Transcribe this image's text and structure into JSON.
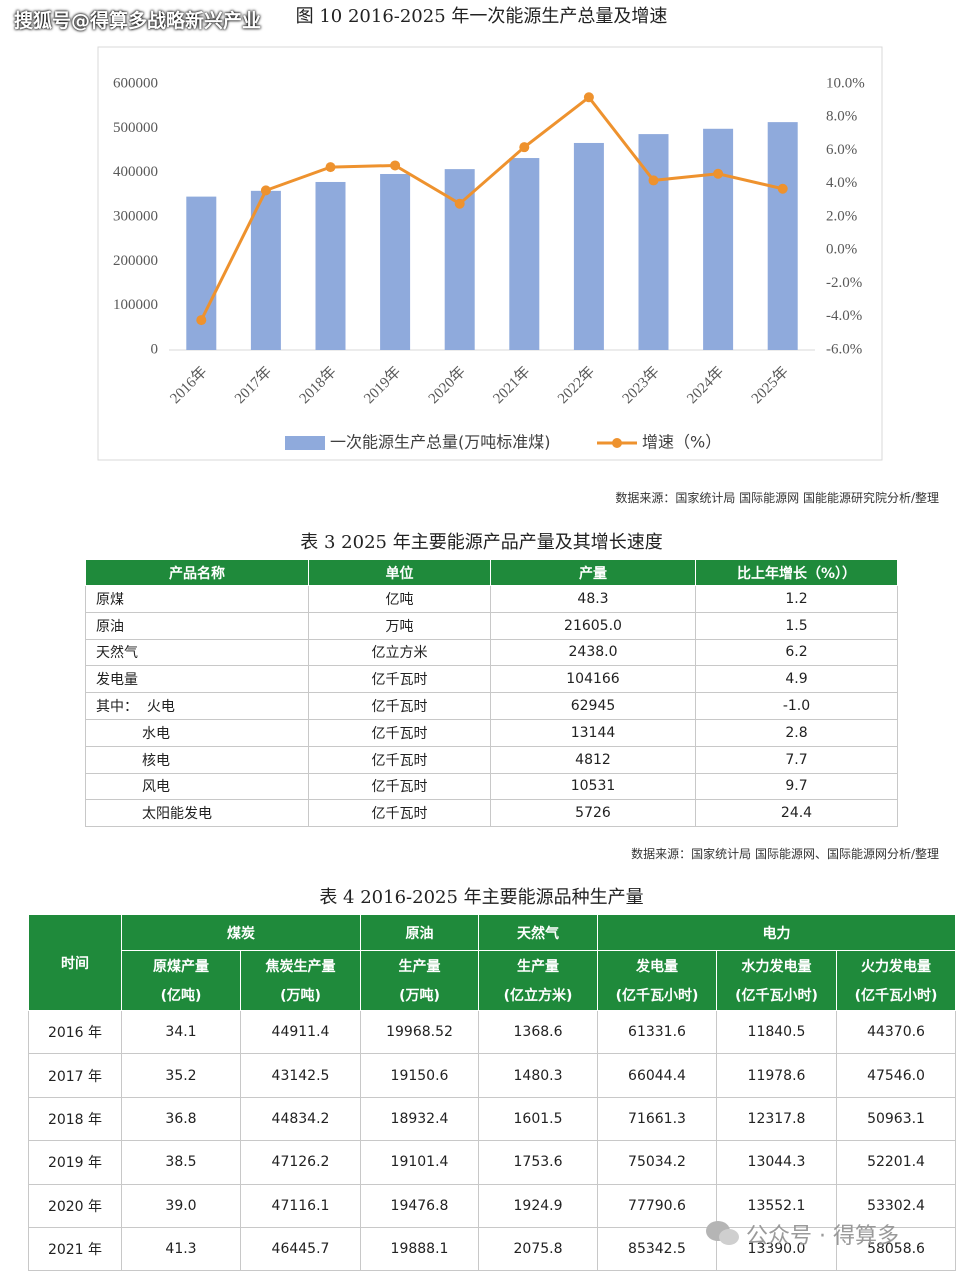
{
  "watermark": "搜狐号@得算多战略新兴产业",
  "figure_title": "图 10 2016-2025 年一次能源生产总量及增速",
  "chart_data": {
    "type": "bar",
    "categories": [
      "2016年",
      "2017年",
      "2018年",
      "2019年",
      "2020年",
      "2021年",
      "2022年",
      "2023年",
      "2024年",
      "2025年"
    ],
    "series": [
      {
        "name": "一次能源生产总量(万吨标准煤)",
        "color": "#8faadc",
        "values": [
          346000,
          359000,
          379000,
          397000,
          408000,
          433000,
          467000,
          487000,
          499000,
          514000
        ]
      },
      {
        "name": "增速（%）",
        "type": "line",
        "axis": "y2",
        "color": "#ee922e",
        "values": [
          -4.2,
          3.6,
          5.0,
          5.1,
          2.8,
          6.2,
          9.2,
          4.2,
          4.6,
          3.7
        ]
      }
    ],
    "ylim": [
      0,
      600000
    ],
    "yticks": [
      0,
      100000,
      200000,
      300000,
      400000,
      500000,
      600000
    ],
    "y2lim": [
      -6,
      10
    ],
    "y2ticks": [
      {
        "value": -6,
        "label": "-6.0%"
      },
      {
        "value": -4,
        "label": "-4.0%"
      },
      {
        "value": -2,
        "label": "-2.0%"
      },
      {
        "value": 0,
        "label": "0.0%"
      },
      {
        "value": 2,
        "label": "2.0%"
      },
      {
        "value": 4,
        "label": "4.0%"
      },
      {
        "value": 6,
        "label": "6.0%"
      },
      {
        "value": 8,
        "label": "8.0%"
      },
      {
        "value": 10,
        "label": "10.0%"
      }
    ],
    "grid": false,
    "legend": "bottom"
  },
  "source_1": "数据来源：国家统计局 国际能源网 国能能源研究院分析/整理",
  "table3": {
    "title": "表 3 2025 年主要能源产品产量及其增长速度",
    "header": [
      "产品名称",
      "单位",
      "产量",
      "比上年增长（%））"
    ],
    "rows": [
      [
        "原煤",
        "亿吨",
        "48.3",
        "1.2"
      ],
      [
        "原油",
        "万吨",
        "21605.0",
        "1.5"
      ],
      [
        "天然气",
        "亿立方米",
        "2438.0",
        "6.2"
      ],
      [
        "发电量",
        "亿千瓦时",
        "104166",
        "4.9"
      ],
      [
        "其中：  火电",
        "亿千瓦时",
        "62945",
        "-1.0"
      ],
      [
        "水电",
        "亿千瓦时",
        "13144",
        "2.8"
      ],
      [
        "核电",
        "亿千瓦时",
        "4812",
        "7.7"
      ],
      [
        "风电",
        "亿千瓦时",
        "10531",
        "9.7"
      ],
      [
        "太阳能发电",
        "亿千瓦时",
        "5726",
        "24.4"
      ]
    ]
  },
  "source_2": "数据来源：国家统计局 国际能源网、国际能源网分析/整理",
  "table4": {
    "title": "表 4 2016-2025 年主要能源品种生产量",
    "time_header": "时间",
    "groups": [
      {
        "label": "煤炭",
        "span": 2
      },
      {
        "label": "原油",
        "span": 1
      },
      {
        "label": "天然气",
        "span": 1
      },
      {
        "label": "电力",
        "span": 3
      }
    ],
    "columns": [
      {
        "name": "原煤产量",
        "unit": "(亿吨)"
      },
      {
        "name": "焦炭生产量",
        "unit": "(万吨)"
      },
      {
        "name": "生产量",
        "unit": "(万吨)"
      },
      {
        "name": "生产量",
        "unit": "(亿立方米)"
      },
      {
        "name": "发电量",
        "unit": "(亿千瓦小时)"
      },
      {
        "name": "水力发电量",
        "unit": "(亿千瓦小时)"
      },
      {
        "name": "火力发电量",
        "unit": "(亿千瓦小时)"
      }
    ],
    "rows": [
      [
        "2016 年",
        "34.1",
        "44911.4",
        "19968.52",
        "1368.6",
        "61331.6",
        "11840.5",
        "44370.6"
      ],
      [
        "2017 年",
        "35.2",
        "43142.5",
        "19150.6",
        "1480.3",
        "66044.4",
        "11978.6",
        "47546.0"
      ],
      [
        "2018 年",
        "36.8",
        "44834.2",
        "18932.4",
        "1601.5",
        "71661.3",
        "12317.8",
        "50963.1"
      ],
      [
        "2019 年",
        "38.5",
        "47126.2",
        "19101.4",
        "1753.6",
        "75034.2",
        "13044.3",
        "52201.4"
      ],
      [
        "2020 年",
        "39.0",
        "47116.1",
        "19476.8",
        "1924.9",
        "77790.6",
        "13552.1",
        "53302.4"
      ],
      [
        "2021 年",
        "41.3",
        "46445.7",
        "19888.1",
        "2075.8",
        "85342.5",
        "13390.0",
        "58058.6"
      ]
    ]
  },
  "watermark_2": "公众号 · 得算多"
}
